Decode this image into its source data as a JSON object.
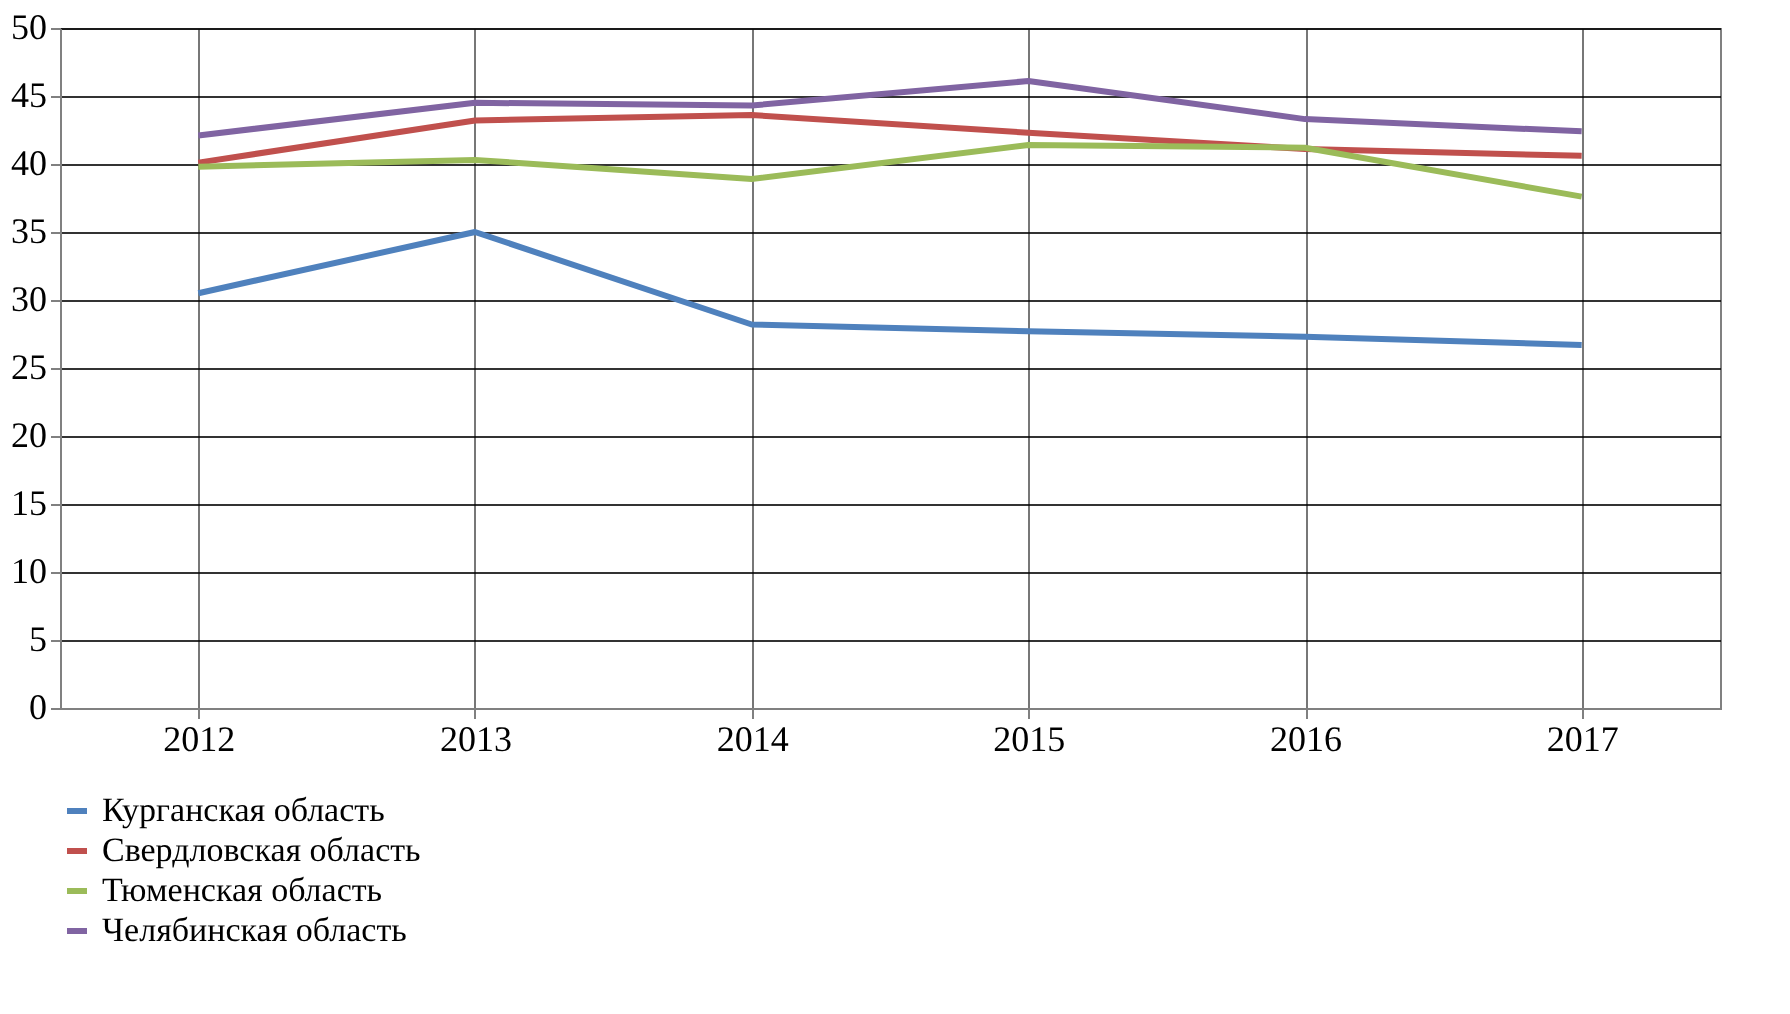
{
  "chart_data": {
    "type": "line",
    "categories": [
      "2012",
      "2013",
      "2014",
      "2015",
      "2016",
      "2017"
    ],
    "series": [
      {
        "name": "Курганская область",
        "color": "#4f81bd",
        "values": [
          30.5,
          35,
          28.2,
          27.7,
          27.3,
          26.7
        ]
      },
      {
        "name": "Свердловская область",
        "color": "#c0504d",
        "values": [
          40.1,
          43.2,
          43.6,
          42.3,
          41.1,
          40.6
        ]
      },
      {
        "name": "Тюменская область",
        "color": "#9bbb59",
        "values": [
          39.8,
          40.3,
          38.9,
          41.4,
          41.2,
          37.6
        ]
      },
      {
        "name": "Челябинская область",
        "color": "#8064a2",
        "values": [
          42.1,
          44.5,
          44.3,
          46.1,
          43.3,
          42.4
        ]
      }
    ],
    "ylim": [
      0,
      50
    ],
    "yticks": [
      0,
      5,
      10,
      15,
      20,
      25,
      30,
      35,
      40,
      45,
      50
    ],
    "grid": true,
    "legend": "bottom",
    "marker": "none",
    "line_style": "solid"
  }
}
